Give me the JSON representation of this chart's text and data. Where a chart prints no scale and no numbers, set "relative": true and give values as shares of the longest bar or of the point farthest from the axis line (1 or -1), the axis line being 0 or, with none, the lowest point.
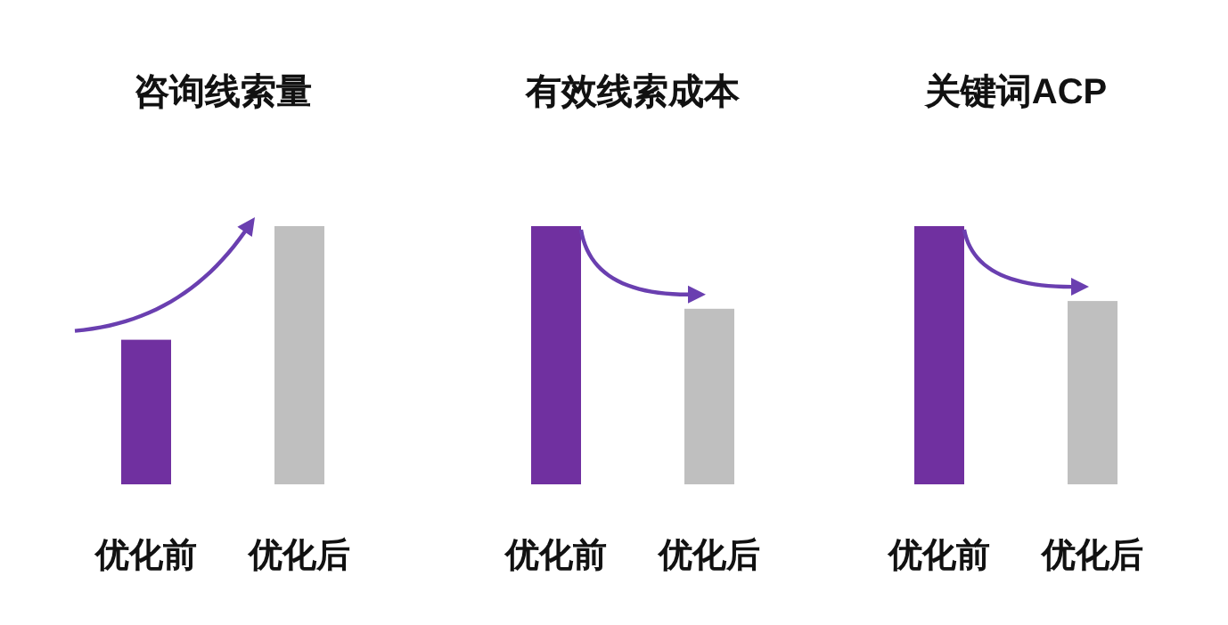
{
  "chart_data": [
    {
      "type": "bar",
      "title": "咨询线索量",
      "categories": [
        "优化前",
        "优化后"
      ],
      "relative": true,
      "values": [
        0.56,
        1
      ],
      "colors": [
        "#7030a0",
        "#bfbfbf"
      ]
    },
    {
      "type": "bar",
      "title": "有效线索成本",
      "categories": [
        "优化前",
        "优化后"
      ],
      "relative": true,
      "values": [
        1,
        0.68
      ],
      "colors": [
        "#7030a0",
        "#bfbfbf"
      ]
    },
    {
      "type": "bar",
      "title": "关键词ACP",
      "categories": [
        "优化前",
        "优化后"
      ],
      "relative": true,
      "values": [
        1,
        0.71
      ],
      "colors": [
        "#7030a0",
        "#bfbfbf"
      ]
    }
  ]
}
